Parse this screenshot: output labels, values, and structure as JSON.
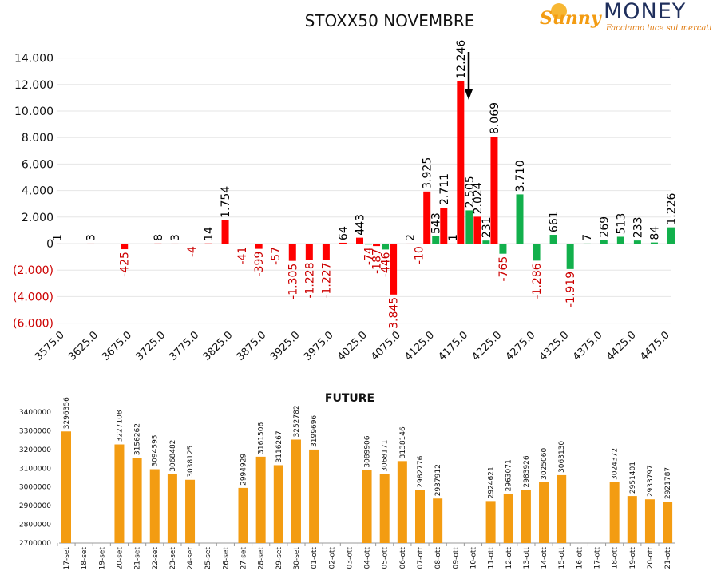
{
  "colors": {
    "positive": "#12b04c",
    "negative": "#ff0000",
    "future": "#f39c12",
    "neg_label": "#cc0000",
    "pos_label": "#000000",
    "grid": "#e6e6e6"
  },
  "logo": {
    "brand_left": "Sunny",
    "brand_right": "MONEY",
    "tagline": "Facciamo luce sui mercati"
  },
  "chart_data": [
    {
      "type": "bar",
      "title": "STOXX50 NOVEMBRE",
      "ylim": [
        -6000,
        14000
      ],
      "yticks": [
        -6000,
        -4000,
        -2000,
        0,
        2000,
        4000,
        6000,
        8000,
        10000,
        12000,
        14000
      ],
      "ytick_labels": [
        "(6.000)",
        "(4.000)",
        "(2.000)",
        "0",
        "2.000",
        "4.000",
        "6.000",
        "8.000",
        "10.000",
        "12.000",
        "14.000"
      ],
      "xtick_labels": [
        "3575.0",
        "3625.0",
        "3675.0",
        "3725.0",
        "3775.0",
        "3825.0",
        "3875.0",
        "3925.0",
        "3975.0",
        "4025.0",
        "4075.0",
        "4125.0",
        "4175.0",
        "4225.0",
        "4275.0",
        "4325.0",
        "4375.0",
        "4425.0",
        "4475.0"
      ],
      "strikes": [
        3575,
        3600,
        3625,
        3650,
        3675,
        3700,
        3725,
        3750,
        3775,
        3800,
        3825,
        3850,
        3875,
        3900,
        3925,
        3950,
        3975,
        4000,
        4025,
        4050,
        4075,
        4100,
        4125,
        4150,
        4175,
        4200,
        4225,
        4250,
        4275,
        4300,
        4325,
        4350,
        4375,
        4400,
        4425,
        4450,
        4475
      ],
      "series": [
        {
          "values": [
            1,
            null,
            3,
            null,
            -425,
            null,
            8,
            3,
            -4,
            14,
            1754,
            -41,
            -399,
            -57,
            -1305,
            -1228,
            -1227,
            64,
            443,
            -187,
            -3845,
            2,
            3925,
            2711,
            12246,
            2024,
            8069,
            null,
            null,
            null,
            null,
            null,
            null,
            null,
            null,
            null,
            null
          ],
          "labels": [
            "1",
            "",
            "3",
            "",
            "-425",
            "",
            "8",
            "3",
            "-4",
            "14",
            "1.754",
            "-41",
            "-399",
            "-57",
            "-1.305",
            "-1.228",
            "-1.227",
            "64",
            "443",
            "-187",
            "-3.845",
            "2",
            "3.925",
            "2.711",
            "12.246",
            "2.024",
            "8.069",
            "",
            "",
            "",
            "",
            "",
            "",
            "",
            "",
            "",
            ""
          ]
        },
        {
          "values": [
            null,
            null,
            null,
            null,
            null,
            null,
            null,
            null,
            null,
            null,
            null,
            null,
            null,
            null,
            null,
            null,
            null,
            null,
            -74,
            -446,
            null,
            -10,
            543,
            1,
            2505,
            231,
            -765,
            3710,
            -1286,
            661,
            -1919,
            7,
            269,
            513,
            233,
            84,
            1226
          ],
          "labels": [
            "",
            "",
            "",
            "",
            "",
            "",
            "",
            "",
            "",
            "",
            "",
            "",
            "",
            "",
            "",
            "",
            "",
            "",
            "-74",
            "-446",
            "",
            "-10",
            "543",
            "1",
            "2.505",
            "231",
            "-765",
            "3.710",
            "-1.286",
            "661",
            "-1.919",
            "7",
            "269",
            "513",
            "233",
            "84",
            "1.226"
          ]
        }
      ],
      "annotation": "arrow at 4175"
    },
    {
      "type": "bar",
      "title": "FUTURE",
      "ylim": [
        2700000,
        3400000
      ],
      "ytick_labels": [
        "2700000",
        "2800000",
        "2900000",
        "3000000",
        "3100000",
        "3200000",
        "3300000",
        "3400000"
      ],
      "categories": [
        "17-set",
        "18-set",
        "19-set",
        "20-set",
        "21-set",
        "22-set",
        "23-set",
        "24-set",
        "25-set",
        "26-set",
        "27-set",
        "28-set",
        "29-set",
        "30-set",
        "01-ott",
        "02-ott",
        "03-ott",
        "04-ott",
        "05-ott",
        "06-ott",
        "07-ott",
        "08-ott",
        "09-ott",
        "10-ott",
        "11-ott",
        "12-ott",
        "13-ott",
        "14-ott",
        "15-ott",
        "16-ott",
        "17-ott",
        "18-ott",
        "19-ott",
        "20-ott",
        "21-ott"
      ],
      "values": [
        3296356,
        null,
        null,
        3227108,
        3156262,
        3094595,
        3068482,
        3038125,
        null,
        null,
        2994929,
        3161506,
        3116267,
        3252782,
        3199696,
        null,
        null,
        3089906,
        3068171,
        3138146,
        2982776,
        2937912,
        null,
        null,
        2924621,
        2963071,
        2983926,
        3025060,
        3063130,
        null,
        null,
        3024372,
        2951401,
        2933797,
        2921787
      ]
    }
  ]
}
